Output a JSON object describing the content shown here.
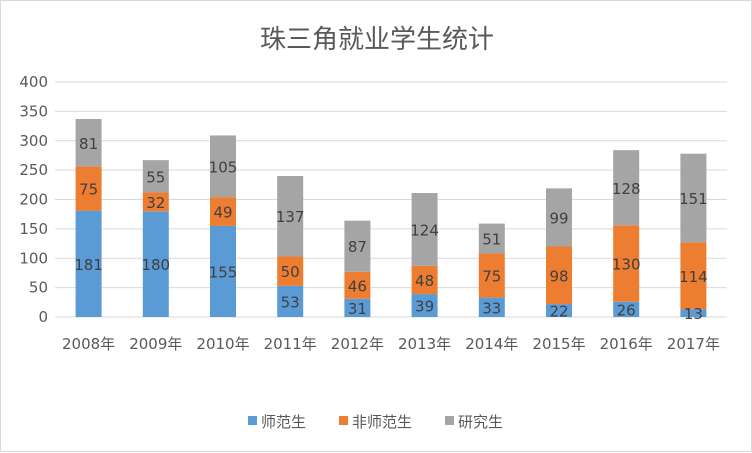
{
  "chart_data": {
    "type": "bar",
    "stacked": true,
    "title": "珠三角就业学生统计",
    "xlabel": "",
    "ylabel": "",
    "categories": [
      "2008年",
      "2009年",
      "2010年",
      "2011年",
      "2012年",
      "2013年",
      "2014年",
      "2015年",
      "2016年",
      "2017年"
    ],
    "series": [
      {
        "name": "师范生",
        "color": "#5b9bd5",
        "values": [
          181,
          180,
          155,
          53,
          31,
          39,
          33,
          22,
          26,
          13
        ]
      },
      {
        "name": "非师范生",
        "color": "#ed7d31",
        "values": [
          75,
          32,
          49,
          50,
          46,
          48,
          75,
          98,
          130,
          114
        ]
      },
      {
        "name": "研究生",
        "color": "#a5a5a5",
        "values": [
          81,
          55,
          105,
          137,
          87,
          124,
          51,
          99,
          128,
          151
        ]
      }
    ],
    "ylim": [
      0,
      400
    ],
    "yticks": [
      0,
      50,
      100,
      150,
      200,
      250,
      300,
      350,
      400
    ],
    "grid": true,
    "legend_position": "bottom",
    "data_labels": true
  }
}
